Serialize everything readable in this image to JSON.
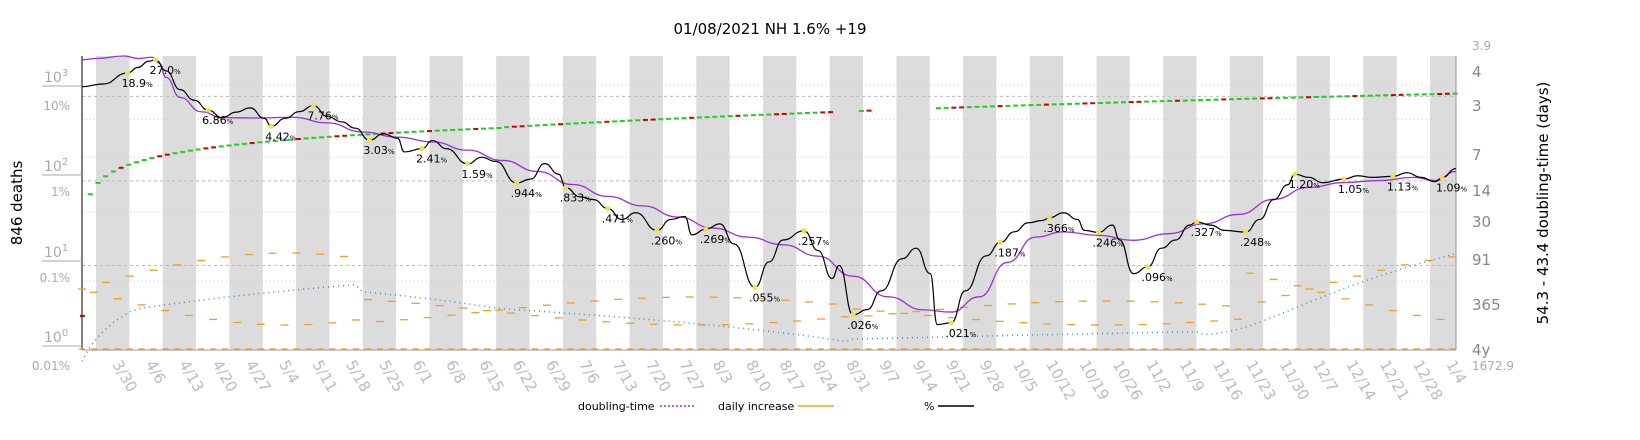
{
  "chart_data": {
    "type": "line",
    "title": "01/08/2021 NH 1.6% +19",
    "ylabel_left": "846 deaths",
    "ylabel_right": "54.3 - 43.4 doubling-time (days)",
    "x_tick_labels": [
      "3/30",
      "4/6",
      "4/13",
      "4/20",
      "4/27",
      "5/4",
      "5/11",
      "5/18",
      "5/25",
      "6/1",
      "6/8",
      "6/15",
      "6/22",
      "6/29",
      "7/6",
      "7/13",
      "7/20",
      "7/27",
      "8/3",
      "8/10",
      "8/17",
      "8/24",
      "8/31",
      "9/7",
      "9/14",
      "9/21",
      "9/28",
      "10/5",
      "10/12",
      "10/19",
      "10/26",
      "11/2",
      "11/9",
      "11/16",
      "11/23",
      "11/30",
      "12/7",
      "12/14",
      "12/21",
      "12/28",
      "1/4"
    ],
    "y_left_deaths_ticks": [
      {
        "label": "10",
        "sup": "0",
        "value": 1
      },
      {
        "label": "10",
        "sup": "1",
        "value": 10
      },
      {
        "label": "10",
        "sup": "2",
        "value": 100
      },
      {
        "label": "10",
        "sup": "3",
        "value": 1000
      }
    ],
    "y_left_percent_ticks": [
      {
        "label": "0.01%",
        "value": 0.01
      },
      {
        "label": "0.1%",
        "value": 0.1
      },
      {
        "label": "1%",
        "value": 1
      },
      {
        "label": "10%",
        "value": 10
      }
    ],
    "y_right_doubling_ticks": [
      {
        "label": "3.9",
        "value": 3.9
      },
      {
        "label": "4",
        "value": 4
      },
      {
        "label": "3",
        "value": 3
      },
      {
        "label": "7",
        "value": 7
      },
      {
        "label": "14",
        "value": 14
      },
      {
        "label": "30",
        "value": 30
      },
      {
        "label": "91",
        "value": 91
      },
      {
        "label": "365",
        "value": 365
      },
      {
        "label": "4y",
        "value": 1460
      }
    ],
    "right_bottom_label": "1672.9",
    "legend": [
      {
        "name": "doubling-time",
        "style": "dotted",
        "color": "#9a30d8"
      },
      {
        "name": "daily increase",
        "style": "solid",
        "color": "#f0a020"
      },
      {
        "name": "%",
        "style": "solid",
        "color": "#000000"
      }
    ],
    "percent_annotations": [
      {
        "label": "18.9",
        "x": 6.5,
        "y": 18.9
      },
      {
        "label": "27.0",
        "x": 10.5,
        "y": 27.0
      },
      {
        "label": "6.86",
        "x": 18,
        "y": 6.86
      },
      {
        "label": "4.42",
        "x": 27,
        "y": 4.42
      },
      {
        "label": "7.76",
        "x": 33,
        "y": 7.76
      },
      {
        "label": "3.03",
        "x": 41,
        "y": 3.03
      },
      {
        "label": "2.41",
        "x": 48.5,
        "y": 2.41
      },
      {
        "label": "1.59",
        "x": 55,
        "y": 1.59
      },
      {
        "label": "0.944",
        "x": 62,
        "y": 0.944,
        "text": ".944"
      },
      {
        "label": "0.833",
        "x": 69,
        "y": 0.833,
        "text": ".833"
      },
      {
        "label": "0.471",
        "x": 75,
        "y": 0.471,
        "text": ".471"
      },
      {
        "label": "0.260",
        "x": 82,
        "y": 0.26,
        "text": ".260"
      },
      {
        "label": "0.269",
        "x": 89,
        "y": 0.269,
        "text": ".269"
      },
      {
        "label": "0.055",
        "x": 96,
        "y": 0.055,
        "text": ".055"
      },
      {
        "label": "0.257",
        "x": 103,
        "y": 0.257,
        "text": ".257"
      },
      {
        "label": "0.026",
        "x": 110,
        "y": 0.026,
        "text": ".026"
      },
      {
        "label": "0.021",
        "x": 124,
        "y": 0.021,
        "text": ".021"
      },
      {
        "label": "0.187",
        "x": 131,
        "y": 0.187,
        "text": ".187"
      },
      {
        "label": "0.366",
        "x": 138,
        "y": 0.366,
        "text": ".366"
      },
      {
        "label": "0.246",
        "x": 145,
        "y": 0.246,
        "text": ".246"
      },
      {
        "label": "0.096",
        "x": 152,
        "y": 0.096,
        "text": ".096"
      },
      {
        "label": "0.327",
        "x": 159,
        "y": 0.327,
        "text": ".327"
      },
      {
        "label": "0.248",
        "x": 166,
        "y": 0.248,
        "text": ".248"
      },
      {
        "label": "1.20",
        "x": 173,
        "y": 1.2
      },
      {
        "label": "1.05",
        "x": 180,
        "y": 1.05
      },
      {
        "label": "1.13",
        "x": 187,
        "y": 1.13
      },
      {
        "label": "1.09",
        "x": 194,
        "y": 1.09
      }
    ],
    "percent_series": {
      "name": "%",
      "points": [
        [
          0,
          13
        ],
        [
          3,
          14
        ],
        [
          6.5,
          18.9
        ],
        [
          8,
          22
        ],
        [
          9.5,
          26
        ],
        [
          10.5,
          27
        ],
        [
          12,
          20
        ],
        [
          14,
          12
        ],
        [
          16,
          9
        ],
        [
          18,
          6.86
        ],
        [
          20,
          5.6
        ],
        [
          22,
          6.5
        ],
        [
          24,
          7.3
        ],
        [
          26,
          5.5
        ],
        [
          27,
          4.42
        ],
        [
          29,
          5.5
        ],
        [
          31,
          6.6
        ],
        [
          33,
          7.76
        ],
        [
          35,
          5.8
        ],
        [
          37,
          5.0
        ],
        [
          39,
          4.2
        ],
        [
          41,
          3.03
        ],
        [
          43,
          3.6
        ],
        [
          45,
          3.2
        ],
        [
          46,
          2.2
        ],
        [
          48.5,
          2.41
        ],
        [
          50,
          3.0
        ],
        [
          52,
          2.4
        ],
        [
          55,
          1.59
        ],
        [
          57,
          1.9
        ],
        [
          59,
          1.7
        ],
        [
          62,
          0.944
        ],
        [
          64,
          1.05
        ],
        [
          66,
          1.6
        ],
        [
          68,
          1.2
        ],
        [
          69,
          0.833
        ],
        [
          71,
          0.65
        ],
        [
          73,
          0.6
        ],
        [
          75,
          0.471
        ],
        [
          77,
          0.35
        ],
        [
          79,
          0.42
        ],
        [
          82,
          0.26
        ],
        [
          84,
          0.35
        ],
        [
          86,
          0.38
        ],
        [
          87,
          0.23
        ],
        [
          89,
          0.269
        ],
        [
          91,
          0.31
        ],
        [
          93,
          0.18
        ],
        [
          96,
          0.055
        ],
        [
          98,
          0.11
        ],
        [
          100,
          0.2
        ],
        [
          103,
          0.257
        ],
        [
          105,
          0.15
        ],
        [
          107,
          0.07
        ],
        [
          108,
          0.1
        ],
        [
          110,
          0.026
        ],
        [
          112,
          0.03
        ],
        [
          114,
          0.05
        ],
        [
          117,
          0.12
        ],
        [
          119,
          0.16
        ],
        [
          121,
          0.08
        ],
        [
          122,
          0.02
        ],
        [
          124,
          0.021
        ],
        [
          126,
          0.05
        ],
        [
          129,
          0.13
        ],
        [
          131,
          0.187
        ],
        [
          133,
          0.25
        ],
        [
          135,
          0.32
        ],
        [
          137,
          0.34
        ],
        [
          138,
          0.366
        ],
        [
          140,
          0.42
        ],
        [
          142,
          0.35
        ],
        [
          143,
          0.26
        ],
        [
          145,
          0.246
        ],
        [
          147,
          0.3
        ],
        [
          148,
          0.2
        ],
        [
          150,
          0.08
        ],
        [
          152,
          0.096
        ],
        [
          154,
          0.16
        ],
        [
          156,
          0.2
        ],
        [
          158,
          0.3
        ],
        [
          159,
          0.327
        ],
        [
          161,
          0.3
        ],
        [
          163,
          0.26
        ],
        [
          166,
          0.248
        ],
        [
          168,
          0.35
        ],
        [
          170,
          0.6
        ],
        [
          172,
          0.9
        ],
        [
          173,
          1.2
        ],
        [
          175,
          1.1
        ],
        [
          177,
          0.95
        ],
        [
          180,
          1.05
        ],
        [
          182,
          1.15
        ],
        [
          184,
          1.1
        ],
        [
          187,
          1.13
        ],
        [
          189,
          1.25
        ],
        [
          191,
          1.1
        ],
        [
          193,
          0.98
        ],
        [
          194,
          1.09
        ],
        [
          196,
          1.4
        ]
      ]
    },
    "doubling_time_series": {
      "name": "doubling-time",
      "color": "#9a30d8",
      "points": [
        [
          0,
          4.2
        ],
        [
          2,
          4.1
        ],
        [
          6,
          3.9
        ],
        [
          8,
          4.1
        ],
        [
          10,
          4.0
        ],
        [
          11,
          4.5
        ],
        [
          12,
          6
        ],
        [
          14,
          9
        ],
        [
          17,
          12
        ],
        [
          20,
          13.5
        ],
        [
          25,
          13.6
        ],
        [
          30,
          13.4
        ],
        [
          35,
          15
        ],
        [
          40,
          18
        ],
        [
          45,
          20
        ],
        [
          50,
          22
        ],
        [
          55,
          26
        ],
        [
          60,
          32
        ],
        [
          65,
          40
        ],
        [
          70,
          52
        ],
        [
          75,
          66
        ],
        [
          80,
          80
        ],
        [
          85,
          100
        ],
        [
          90,
          125
        ],
        [
          95,
          150
        ],
        [
          100,
          175
        ],
        [
          105,
          220
        ],
        [
          110,
          330
        ],
        [
          115,
          500
        ],
        [
          120,
          650
        ],
        [
          124,
          680
        ],
        [
          128,
          500
        ],
        [
          132,
          250
        ],
        [
          136,
          150
        ],
        [
          140,
          135
        ],
        [
          145,
          145
        ],
        [
          150,
          160
        ],
        [
          155,
          140
        ],
        [
          160,
          115
        ],
        [
          165,
          95
        ],
        [
          170,
          70
        ],
        [
          175,
          55
        ],
        [
          180,
          50
        ],
        [
          185,
          48
        ],
        [
          190,
          45
        ],
        [
          193,
          48
        ],
        [
          196,
          40
        ]
      ]
    },
    "daily_increase_note": "scattered orange dashes",
    "cumulative_deaths_note": "green/red markers"
  }
}
